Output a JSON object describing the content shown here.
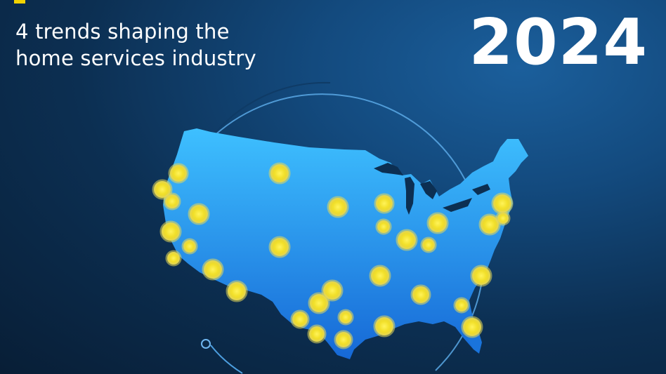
{
  "header": {
    "title_line1": "4 trends shaping the",
    "title_line2": "home services industry",
    "year": "2024"
  },
  "colors": {
    "background": "#0c2f52",
    "map_top": "#39b6ff",
    "map_bottom": "#1a6fd8",
    "marker": "#f4e23a",
    "marker_halo": "#d9d34a",
    "orbit": "#7fc6ff",
    "accent": "#f2d300"
  },
  "icons": {
    "map": "usa-map",
    "markers": "location-dot"
  }
}
